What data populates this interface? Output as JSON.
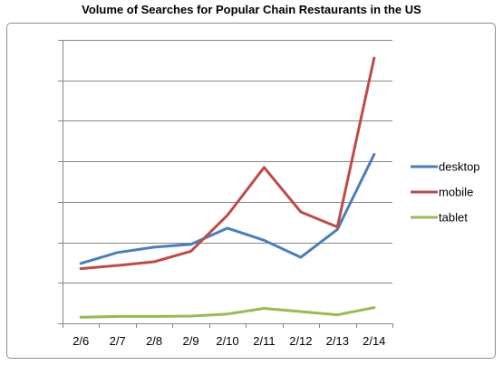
{
  "chart_data": {
    "type": "line",
    "title": "Volume of Searches for Popular Chain Restaurants in the US",
    "xlabel": "",
    "ylabel": "",
    "categories": [
      "2/6",
      "2/7",
      "2/8",
      "2/9",
      "2/10",
      "2/11",
      "2/12",
      "2/13",
      "2/14"
    ],
    "ylim": [
      0,
      7
    ],
    "y_tick_labels_shown": false,
    "grid": "horizontal",
    "legend_position": "right",
    "series": [
      {
        "name": "desktop",
        "color": "#4a7ebb",
        "values": [
          1.48,
          1.75,
          1.88,
          1.95,
          2.35,
          2.05,
          1.63,
          2.32,
          4.17
        ]
      },
      {
        "name": "mobile",
        "color": "#be4b48",
        "values": [
          1.35,
          1.43,
          1.52,
          1.78,
          2.67,
          3.85,
          2.75,
          2.38,
          6.55
        ]
      },
      {
        "name": "tablet",
        "color": "#98b954",
        "values": [
          0.15,
          0.17,
          0.17,
          0.18,
          0.23,
          0.37,
          0.29,
          0.21,
          0.39
        ]
      }
    ]
  }
}
